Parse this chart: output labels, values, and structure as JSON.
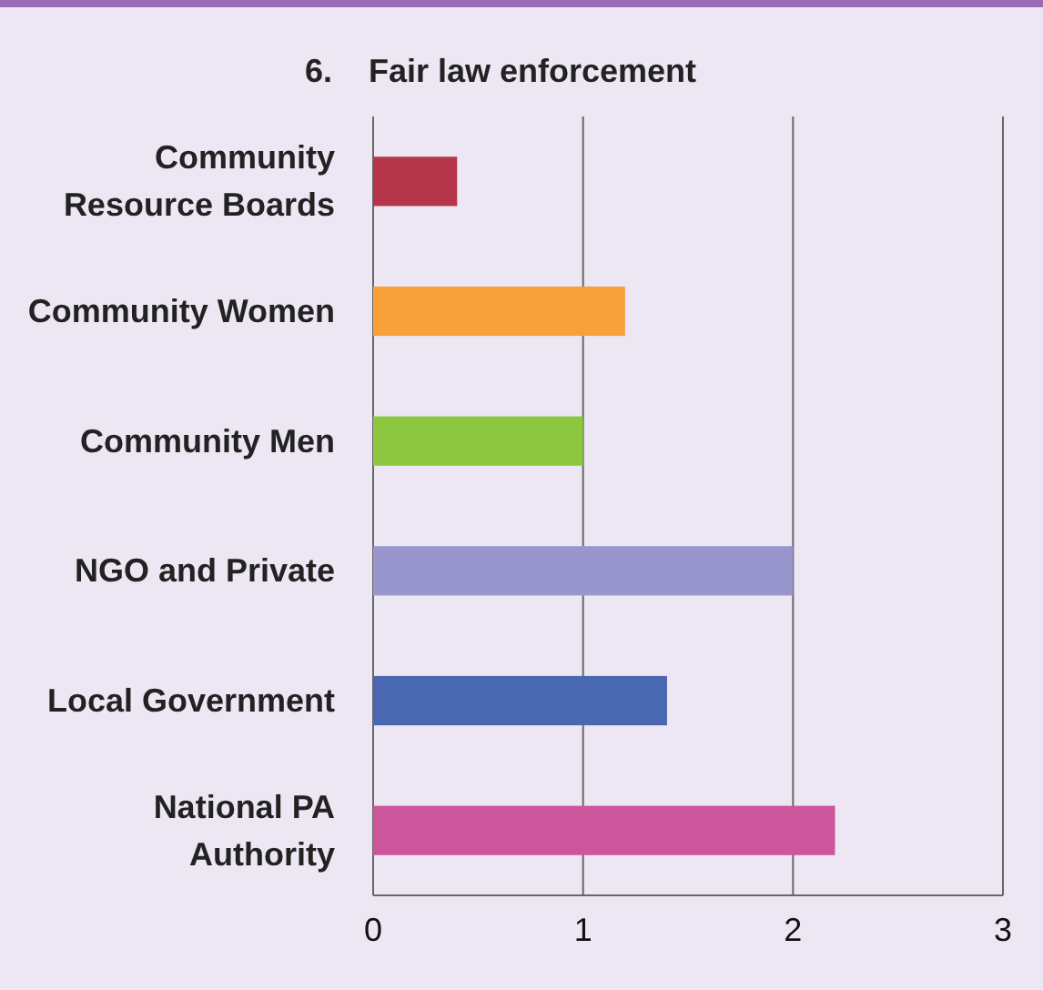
{
  "chart_data": {
    "type": "bar",
    "orientation": "horizontal",
    "title": "6.    Fair law enforcement",
    "categories": [
      "Community Resource Boards",
      "Community Women",
      "Community Men",
      "NGO and Private",
      "Local Government",
      "National PA Authority"
    ],
    "values": [
      0.4,
      1.2,
      1.0,
      2.0,
      1.4,
      2.2
    ],
    "colors": [
      "#b5364a",
      "#f7a03c",
      "#8dc63f",
      "#9896cc",
      "#4a67b1",
      "#cd559c"
    ],
    "xlim": [
      0,
      3
    ],
    "xticks": [
      0,
      1,
      2,
      3
    ],
    "grid": "x"
  }
}
